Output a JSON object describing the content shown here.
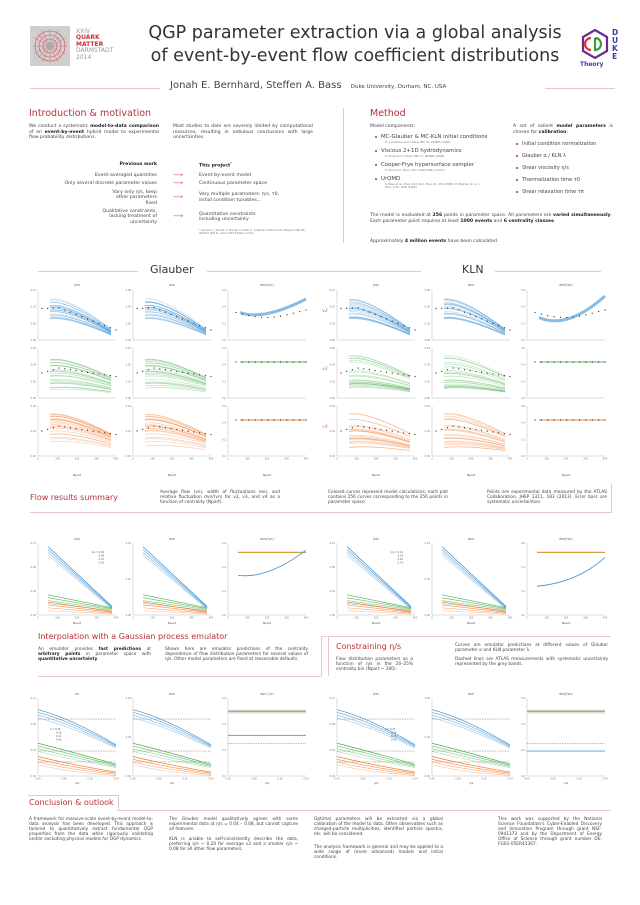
{
  "header": {
    "conference": {
      "line1": "XXIV",
      "line2": "QUARK",
      "line3": "MATTER",
      "line4": "DARMSTADT",
      "line5": "2014"
    },
    "title_line1": "QGP parameter extraction via a global analysis",
    "title_line2": "of event-by-event flow coefficient distributions",
    "authors": "Jonah E. Bernhard, Steffen A. Bass",
    "affiliation": "Duke University, Durham, NC, USA",
    "logo": {
      "text": "Theory",
      "letters": [
        "D",
        "U",
        "K",
        "E"
      ]
    }
  },
  "intro": {
    "title": "Introduction & motivation",
    "para1_parts": [
      "We conduct a systematic ",
      "model-to-data comparison",
      " of an ",
      "event-by-event",
      " hybrid model to experimental flow probability distributions."
    ],
    "para2": "Most studies to date are severely limited by computational resources, resulting in nebulous conclusions with large uncertainties.",
    "previous_heading": "Previous work",
    "project_heading": "This project",
    "project_marker": "*",
    "rows": [
      {
        "prev": "Event-averaged quantities",
        "next": "Event-by-event model"
      },
      {
        "prev": "Only several discrete parameter values",
        "next": "Continuous parameter space"
      },
      {
        "prev": "Vary only η/s, keep other parameters fixed",
        "next": "Vary multiple parameters: η/s, τ0, initial condition tunables..."
      },
      {
        "prev": "Qualitative constraints, lacking treatment of uncertainty",
        "next": "Quantitative constraints including uncertainty"
      }
    ],
    "arrow": "⟶",
    "footnote": "* See also: J. Novak, K. Novak, S. Pratt, C. Coleman-Smith and R. Wolpert, PRC 89, 034917 (2014), arXiv:1303.5769 [nucl-th]."
  },
  "method": {
    "title": "Method",
    "components_label": "Model components:",
    "components": [
      {
        "name": "MC-Glauber & MC-KLN initial conditions",
        "ref": "H.-J. Drescher and Y. Nara, PRC 74, 044905 (2006)."
      },
      {
        "name": "Viscous 2+1D hydrodynamics",
        "ref": "H. Song and U. Heinz, PRC 77, 064901 (2008)."
      },
      {
        "name": "Cooper-Frye hypersurface sampler",
        "ref": "Z. Qiu and C. Shen, arXiv:1308.2182 [nucl-th]."
      },
      {
        "name": "UrQMD",
        "ref": "S. Bass et. al., Prog. Part. Nucl. Phys. 41, 255 (1998); M. Bleicher et. al., J. Phys. G 25, 1859 (1999)."
      }
    ],
    "params_intro_parts": [
      "A set of salient ",
      "model parameters",
      " is chosen for ",
      "calibration",
      ":"
    ],
    "params": [
      "Initial condition normalization",
      "Glauber α / KLN λ",
      "Shear viscosity η/s",
      "Thermalization time τ0",
      "Shear relaxation time τπ"
    ],
    "eval_parts": [
      "The model is evaluated at ",
      "256",
      " points in parameter space.  All parameters are ",
      "varied simultaneously",
      ".  Each parameter point requires at least ",
      "1000 events",
      " and ",
      "6 centrality classes",
      "."
    ],
    "approx_parts": [
      "Approximately ",
      "4 million events",
      " have been calculated."
    ]
  },
  "flow_grid": {
    "glauber_title": "Glauber",
    "kln_title": "KLN",
    "col_titles": [
      "⟨vn⟩",
      "σvn",
      "σvn/⟨vn⟩"
    ],
    "row_labels": [
      "v2",
      "v3",
      "v4"
    ],
    "xlabel": "Npart",
    "xticks": [
      "0",
      "100",
      "200",
      "300",
      "400"
    ],
    "row_yticks": [
      [
        [
          "0.00",
          "0.05",
          "0.10",
          "0.15"
        ],
        [
          "0.00",
          "0.02",
          "0.04",
          "0.06"
        ],
        [
          "0.0",
          "0.2",
          "0.4",
          "0.6"
        ]
      ],
      [
        [
          "0.00",
          "0.02",
          "0.04",
          "0.06"
        ],
        [
          "0.00",
          "0.01",
          "0.02",
          "0.03"
        ],
        [
          "0.0",
          "0.2",
          "0.4",
          "0.6"
        ]
      ],
      [
        [
          "0.00",
          "0.02",
          "0.04"
        ],
        [
          "0.00",
          "0.01",
          "0.02"
        ],
        [
          "0.0",
          "0.2",
          "0.4",
          "0.6"
        ]
      ]
    ]
  },
  "flow_summary": {
    "title": "Flow results summary",
    "text1": "Average flow ⟨vn⟩, width of fluctuations σvn, and relative fluctuation σvn/⟨vn⟩ for v2, v3, and v4 as a function of centrality (Npart).",
    "text2": "Colored curves represent model calculations; each plot contains 256 curves corresponding to the 256 points in parameter space.",
    "text3": "Points are experimental data measured by the ATLAS Collaboration, JHEP 1311, 183 (2013). Error bars are systematic uncertainties."
  },
  "emulator_grid": {
    "col_titles": [
      "⟨vn⟩",
      "σvn",
      "σvn/⟨vn⟩"
    ],
    "xlabel": "Npart",
    "xticks": [
      "0",
      "100",
      "200",
      "300",
      "400"
    ],
    "yticks": [
      [
        "0.00",
        "0.04",
        "0.08",
        "0.12"
      ],
      [
        "0.00",
        "0.02",
        "0.04"
      ],
      [
        "0.0",
        "0.2",
        "0.4",
        "0.6"
      ]
    ],
    "glauber_legend": {
      "label": "η/s =",
      "values": [
        "0.04",
        "0.08",
        "0.12",
        "0.16"
      ]
    },
    "kln_legend": {
      "label": "η/s =",
      "values": [
        "0.12",
        "0.16",
        "0.20",
        "0.24"
      ]
    }
  },
  "interpolation": {
    "title": "Interpolation with a Gaussian process emulator",
    "text1_parts": [
      "An emulator provides ",
      "fast predictions",
      " at ",
      "arbitrary points",
      " in parameter space with ",
      "quantitative uncertainty",
      "."
    ],
    "text2": "Shown here are emulator predictions of the centrality dependence of flow distribution parameters for several values of η/s.  Other model parameters are fixed at reasonable defaults."
  },
  "constraining": {
    "title": "Constraining η/s",
    "text1": "Flow distribution parameters as a function of η/s in the 20–25% centrality bin (Npart ~ 200).",
    "text2": "Curves are emulator predictions at different values of Glauber parameter α and KLN parameter λ.",
    "text3": "Dashed lines are ATLAS measurements with systematic uncertainty represented by the grey bands."
  },
  "etas_grid": {
    "glauber_titles": [
      "vn",
      "σvn",
      "σvn / vn"
    ],
    "kln_titles": [
      "⟨vn⟩",
      "σvn",
      "σvn/⟨vn⟩"
    ],
    "xlabel": "η/s",
    "xticks": [
      "0.00",
      "0.08",
      "0.16",
      "0.24"
    ],
    "yticks": [
      [
        "0.00",
        "0.04",
        "0.08",
        "0.12"
      ],
      [
        "0.00",
        "0.02",
        "0.04"
      ],
      [
        "0.0",
        "0.2",
        "0.4",
        "0.6"
      ]
    ],
    "glauber_legend": {
      "label": "α =",
      "values": [
        "0.24",
        "0.18",
        "0.12",
        "0.06"
      ]
    },
    "kln_legend": {
      "label": "λ =",
      "values": [
        "0.25",
        "0.20",
        "0.15",
        "0.10"
      ]
    }
  },
  "conclusion": {
    "title": "Conclusion & outlook",
    "col1": "A framework for massive-scale event-by-event model-to-data analysis has been developed. This approach is tailored to quantitatively extract fundamental QGP properties from the data while rigorously validating and/or excluding physical models for QGP dynamics.",
    "col2a": "The Glauber model qualitatively agrees with some experimental data at η/s = 0.04 – 0.08, but cannot capture all features.",
    "col2b": "KLN is unable to self-consistently describe the data, preferring η/s ~ 0.20 for average v2 and a smaller η/s ~ 0.08 for all other flow parameters.",
    "col3a": "Optimal parameters will be extracted via a global calibration of the model to data.  Other observables such as charged-particle multiplicities, identified particle spectra, etc. will be considered.",
    "col3b": "The analysis framework is general and may be applied to a wide range of (more advanced) models and initial conditions.",
    "col4": "This work was supported by the National Science Foundation's Cyber-Enabled Discovery and Innovation Program through grant NSF-0941373 and by the Department of Energy Office of Science through grant number DE-FG02-05ER41367."
  },
  "colors": {
    "accent": "#b5303a",
    "v2": "#3a8fd0",
    "v3": "#4caf50",
    "v4": "#f07c2e",
    "rule": "#e8c6ca"
  }
}
